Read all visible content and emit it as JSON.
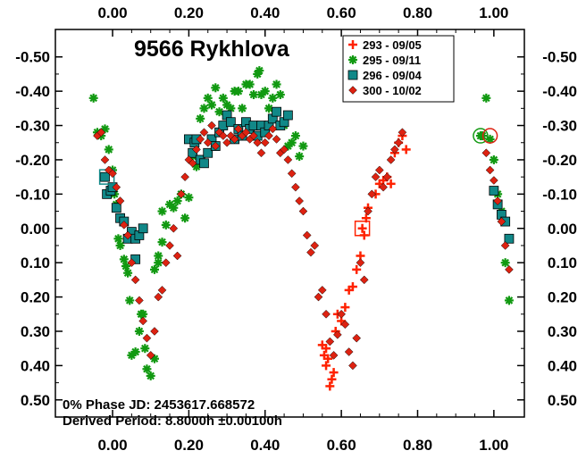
{
  "chart_data": {
    "type": "scatter",
    "title": "9566 Rykhlova",
    "xlabel": "",
    "ylabel": "",
    "xlim": [
      -0.15,
      1.08
    ],
    "ylim": [
      -0.58,
      0.55
    ],
    "y_inverted": true,
    "x_ticks": [
      "0.00",
      "0.20",
      "0.40",
      "0.60",
      "0.80",
      "1.00"
    ],
    "x_tick_values": [
      0,
      0.2,
      0.4,
      0.6,
      0.8,
      1.0
    ],
    "y_ticks": [
      "-0.50",
      "-0.40",
      "-0.30",
      "-0.20",
      "-0.10",
      "0.00",
      "0.10",
      "0.20",
      "0.30",
      "0.40",
      "0.50"
    ],
    "y_tick_values": [
      -0.5,
      -0.4,
      -0.3,
      -0.2,
      -0.1,
      0,
      0.1,
      0.2,
      0.3,
      0.4,
      0.5
    ],
    "grid": false,
    "legend_position": "top-right",
    "annotations": {
      "phase_line": "0% Phase JD:  2453617.668572",
      "period_line": "Derived Period: 8.8000h  ±0.00100h"
    },
    "series": [
      {
        "name": "293 - 09/05",
        "marker": "plus",
        "color": "#ff2200",
        "points": [
          [
            0.55,
            0.34
          ],
          [
            0.555,
            0.37
          ],
          [
            0.56,
            0.35
          ],
          [
            0.565,
            0.38
          ],
          [
            0.57,
            0.46
          ],
          [
            0.575,
            0.44
          ],
          [
            0.58,
            0.42
          ],
          [
            0.56,
            0.4
          ],
          [
            0.585,
            0.3
          ],
          [
            0.59,
            0.25
          ],
          [
            0.6,
            0.27
          ],
          [
            0.61,
            0.23
          ],
          [
            0.62,
            0.18
          ],
          [
            0.63,
            0.17
          ],
          [
            0.64,
            0.12
          ],
          [
            0.65,
            0.08
          ],
          [
            0.66,
            0.02
          ],
          [
            0.665,
            -0.03
          ],
          [
            0.67,
            -0.06
          ],
          [
            0.69,
            -0.1
          ],
          [
            0.7,
            -0.13
          ],
          [
            0.71,
            -0.14
          ],
          [
            0.72,
            -0.15
          ],
          [
            0.73,
            -0.13
          ],
          [
            0.75,
            -0.25
          ],
          [
            0.76,
            -0.27
          ],
          [
            0.77,
            -0.23
          ],
          [
            0.74,
            -0.22
          ]
        ],
        "open_marker": {
          "x": 0.655,
          "y": 0.0
        }
      },
      {
        "name": "295 - 09/11",
        "marker": "asterisk",
        "color": "#119911",
        "points": [
          [
            -0.05,
            -0.38
          ],
          [
            -0.04,
            -0.28
          ],
          [
            -0.03,
            -0.27
          ],
          [
            -0.02,
            -0.29
          ],
          [
            -0.01,
            -0.23
          ],
          [
            0.0,
            -0.17
          ],
          [
            0.005,
            -0.1
          ],
          [
            0.01,
            -0.07
          ],
          [
            0.015,
            0.03
          ],
          [
            0.02,
            0.05
          ],
          [
            0.03,
            0.09
          ],
          [
            0.035,
            0.11
          ],
          [
            0.04,
            0.13
          ],
          [
            0.045,
            0.21
          ],
          [
            0.05,
            0.37
          ],
          [
            0.06,
            0.36
          ],
          [
            0.07,
            0.3
          ],
          [
            0.075,
            0.25
          ],
          [
            0.08,
            0.25
          ],
          [
            0.085,
            0.35
          ],
          [
            0.09,
            0.41
          ],
          [
            0.1,
            0.43
          ],
          [
            0.11,
            0.38
          ],
          [
            0.12,
            0.08
          ],
          [
            0.13,
            0.04
          ],
          [
            0.14,
            -0.01
          ],
          [
            0.15,
            -0.07
          ],
          [
            0.16,
            -0.06
          ],
          [
            0.17,
            -0.08
          ],
          [
            0.18,
            -0.1
          ],
          [
            0.19,
            -0.03
          ],
          [
            0.2,
            -0.09
          ],
          [
            0.21,
            -0.21
          ],
          [
            0.22,
            -0.18
          ],
          [
            0.23,
            -0.32
          ],
          [
            0.24,
            -0.35
          ],
          [
            0.25,
            -0.38
          ],
          [
            0.26,
            -0.36
          ],
          [
            0.27,
            -0.41
          ],
          [
            0.28,
            -0.34
          ],
          [
            0.29,
            -0.38
          ],
          [
            0.3,
            -0.36
          ],
          [
            0.31,
            -0.35
          ],
          [
            0.32,
            -0.4
          ],
          [
            0.33,
            -0.4
          ],
          [
            0.34,
            -0.35
          ],
          [
            0.35,
            -0.42
          ],
          [
            0.36,
            -0.42
          ],
          [
            0.37,
            -0.39
          ],
          [
            0.38,
            -0.45
          ],
          [
            0.385,
            -0.46
          ],
          [
            0.39,
            -0.39
          ],
          [
            0.4,
            -0.4
          ],
          [
            0.41,
            -0.35
          ],
          [
            0.42,
            -0.38
          ],
          [
            0.43,
            -0.42
          ],
          [
            0.44,
            -0.39
          ],
          [
            0.45,
            -0.3
          ],
          [
            0.46,
            -0.24
          ],
          [
            0.47,
            -0.25
          ],
          [
            0.48,
            -0.27
          ],
          [
            0.49,
            -0.21
          ],
          [
            0.5,
            -0.24
          ],
          [
            0.97,
            -0.27
          ],
          [
            0.98,
            -0.38
          ],
          [
            0.99,
            -0.26
          ],
          [
            1.0,
            -0.2
          ],
          [
            1.01,
            -0.1
          ],
          [
            1.02,
            -0.05
          ],
          [
            1.03,
            0.1
          ],
          [
            1.04,
            0.21
          ],
          [
            0.11,
            0.12
          ],
          [
            0.12,
            0.1
          ],
          [
            0.13,
            -0.05
          ]
        ],
        "open_marker": {
          "x": 0.965,
          "y": -0.27
        }
      },
      {
        "name": "296 - 09/04",
        "marker": "square",
        "color": "#118888",
        "points": [
          [
            -0.02,
            -0.15
          ],
          [
            -0.015,
            -0.1
          ],
          [
            -0.005,
            -0.11
          ],
          [
            0.0,
            -0.12
          ],
          [
            0.01,
            -0.06
          ],
          [
            0.02,
            -0.03
          ],
          [
            0.03,
            -0.02
          ],
          [
            0.04,
            0.03
          ],
          [
            0.05,
            0.01
          ],
          [
            0.06,
            0.03
          ],
          [
            0.06,
            0.09
          ],
          [
            0.07,
            0.02
          ],
          [
            0.08,
            0.0
          ],
          [
            0.2,
            -0.26
          ],
          [
            0.21,
            -0.22
          ],
          [
            0.215,
            -0.25
          ],
          [
            0.22,
            -0.26
          ],
          [
            0.23,
            -0.2
          ],
          [
            0.24,
            -0.19
          ],
          [
            0.25,
            -0.22
          ],
          [
            0.26,
            -0.26
          ],
          [
            0.27,
            -0.24
          ],
          [
            0.28,
            -0.28
          ],
          [
            0.29,
            -0.3
          ],
          [
            0.3,
            -0.33
          ],
          [
            0.31,
            -0.31
          ],
          [
            0.32,
            -0.26
          ],
          [
            0.33,
            -0.29
          ],
          [
            0.34,
            -0.27
          ],
          [
            0.35,
            -0.31
          ],
          [
            0.36,
            -0.29
          ],
          [
            0.37,
            -0.3
          ],
          [
            0.38,
            -0.27
          ],
          [
            0.39,
            -0.3
          ],
          [
            0.4,
            -0.28
          ],
          [
            0.41,
            -0.3
          ],
          [
            0.42,
            -0.32
          ],
          [
            0.43,
            -0.34
          ],
          [
            0.44,
            -0.3
          ],
          [
            0.45,
            -0.31
          ],
          [
            0.46,
            -0.33
          ],
          [
            1.0,
            -0.11
          ],
          [
            1.01,
            -0.07
          ],
          [
            1.02,
            -0.04
          ],
          [
            1.03,
            -0.02
          ],
          [
            1.04,
            0.03
          ]
        ],
        "open_marker": {
          "x": -0.015,
          "y": -0.15
        }
      },
      {
        "name": "300 - 10/02",
        "marker": "diamond",
        "color": "#dd2211",
        "points": [
          [
            -0.04,
            -0.27
          ],
          [
            -0.03,
            -0.28
          ],
          [
            -0.02,
            -0.2
          ],
          [
            -0.01,
            -0.17
          ],
          [
            0.0,
            -0.16
          ],
          [
            0.01,
            -0.12
          ],
          [
            0.02,
            -0.08
          ],
          [
            0.03,
            -0.01
          ],
          [
            0.04,
            0.02
          ],
          [
            0.05,
            0.1
          ],
          [
            0.06,
            0.15
          ],
          [
            0.07,
            0.21
          ],
          [
            0.08,
            0.27
          ],
          [
            0.09,
            0.32
          ],
          [
            0.1,
            0.37
          ],
          [
            0.11,
            0.3
          ],
          [
            0.12,
            0.2
          ],
          [
            0.13,
            0.18
          ],
          [
            0.14,
            0.1
          ],
          [
            0.15,
            0.05
          ],
          [
            0.16,
            0.0
          ],
          [
            0.17,
            0.08
          ],
          [
            0.18,
            -0.1
          ],
          [
            0.19,
            -0.15
          ],
          [
            0.2,
            -0.2
          ],
          [
            0.21,
            -0.19
          ],
          [
            0.22,
            -0.23
          ],
          [
            0.23,
            -0.26
          ],
          [
            0.24,
            -0.28
          ],
          [
            0.25,
            -0.25
          ],
          [
            0.26,
            -0.3
          ],
          [
            0.27,
            -0.24
          ],
          [
            0.28,
            -0.28
          ],
          [
            0.29,
            -0.27
          ],
          [
            0.3,
            -0.25
          ],
          [
            0.31,
            -0.27
          ],
          [
            0.32,
            -0.26
          ],
          [
            0.33,
            -0.29
          ],
          [
            0.34,
            -0.27
          ],
          [
            0.35,
            -0.28
          ],
          [
            0.36,
            -0.26
          ],
          [
            0.37,
            -0.27
          ],
          [
            0.38,
            -0.25
          ],
          [
            0.39,
            -0.22
          ],
          [
            0.4,
            -0.25
          ],
          [
            0.41,
            -0.27
          ],
          [
            0.42,
            -0.29
          ],
          [
            0.43,
            -0.26
          ],
          [
            0.44,
            -0.22
          ],
          [
            0.45,
            -0.23
          ],
          [
            0.46,
            -0.2
          ],
          [
            0.47,
            -0.16
          ],
          [
            0.48,
            -0.12
          ],
          [
            0.49,
            -0.08
          ],
          [
            0.5,
            -0.05
          ],
          [
            0.51,
            0.02
          ],
          [
            0.52,
            0.07
          ],
          [
            0.53,
            0.05
          ],
          [
            0.54,
            0.2
          ],
          [
            0.55,
            0.18
          ],
          [
            0.56,
            0.25
          ],
          [
            0.57,
            0.33
          ],
          [
            0.58,
            0.37
          ],
          [
            0.59,
            0.31
          ],
          [
            0.6,
            0.25
          ],
          [
            0.61,
            0.28
          ],
          [
            0.62,
            0.36
          ],
          [
            0.63,
            0.4
          ],
          [
            0.64,
            0.32
          ],
          [
            0.65,
            0.1
          ],
          [
            0.66,
            0.15
          ],
          [
            0.67,
            -0.05
          ],
          [
            0.68,
            -0.1
          ],
          [
            0.69,
            -0.15
          ],
          [
            0.7,
            -0.17
          ],
          [
            0.71,
            -0.12
          ],
          [
            0.72,
            -0.15
          ],
          [
            0.73,
            -0.2
          ],
          [
            0.74,
            -0.23
          ],
          [
            0.75,
            -0.25
          ],
          [
            0.76,
            -0.28
          ],
          [
            0.98,
            -0.22
          ],
          [
            0.99,
            -0.17
          ],
          [
            1.0,
            -0.14
          ],
          [
            1.01,
            -0.08
          ],
          [
            1.02,
            -0.02
          ],
          [
            1.03,
            0.05
          ],
          [
            1.04,
            0.12
          ]
        ],
        "open_marker": {
          "x": 0.99,
          "y": -0.27
        }
      }
    ]
  }
}
